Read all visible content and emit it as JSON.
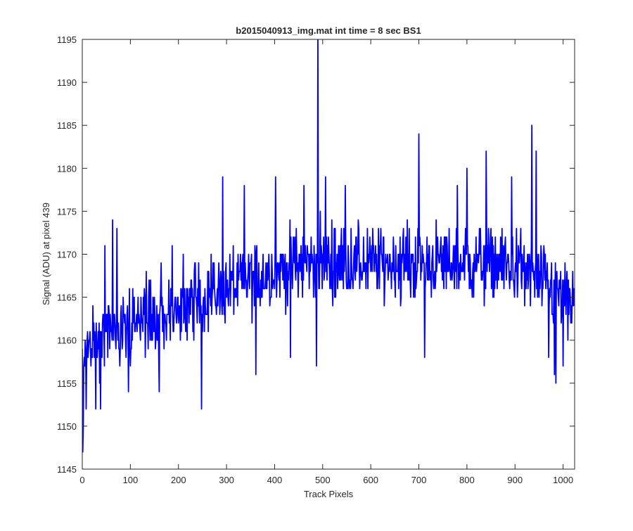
{
  "chart_data": {
    "type": "line",
    "title": "b2015040913_img.mat int time = 8 sec   BS1",
    "xlabel": "Track Pixels",
    "ylabel": "Signal (ADU) at pixel 439",
    "xlim": [
      0,
      1024
    ],
    "ylim": [
      1145,
      1195
    ],
    "xticks": [
      0,
      100,
      200,
      300,
      400,
      500,
      600,
      700,
      800,
      900,
      1000
    ],
    "yticks": [
      1145,
      1150,
      1155,
      1160,
      1165,
      1170,
      1175,
      1180,
      1185,
      1190,
      1195
    ],
    "grid": false,
    "series_color": "#0000ff",
    "n_points": 1024,
    "baseline": [
      [
        0,
        1158
      ],
      [
        50,
        1161
      ],
      [
        100,
        1162
      ],
      [
        150,
        1163
      ],
      [
        200,
        1164
      ],
      [
        250,
        1165
      ],
      [
        300,
        1166
      ],
      [
        350,
        1167
      ],
      [
        400,
        1168
      ],
      [
        450,
        1169
      ],
      [
        500,
        1169
      ],
      [
        550,
        1169
      ],
      [
        600,
        1169
      ],
      [
        650,
        1169
      ],
      [
        700,
        1169
      ],
      [
        750,
        1169
      ],
      [
        800,
        1169
      ],
      [
        850,
        1169
      ],
      [
        900,
        1168.5
      ],
      [
        950,
        1167
      ],
      [
        1000,
        1165
      ],
      [
        1023,
        1164
      ]
    ],
    "noise_amplitude": 3.5,
    "notable_points": [
      {
        "x": 1,
        "y": 1147
      },
      {
        "x": 2,
        "y": 1150
      },
      {
        "x": 5,
        "y": 1157
      },
      {
        "x": 8,
        "y": 1152
      },
      {
        "x": 28,
        "y": 1152
      },
      {
        "x": 38,
        "y": 1152
      },
      {
        "x": 47,
        "y": 1171
      },
      {
        "x": 63,
        "y": 1174
      },
      {
        "x": 72,
        "y": 1173
      },
      {
        "x": 96,
        "y": 1154
      },
      {
        "x": 160,
        "y": 1154
      },
      {
        "x": 187,
        "y": 1171
      },
      {
        "x": 210,
        "y": 1170
      },
      {
        "x": 248,
        "y": 1152
      },
      {
        "x": 292,
        "y": 1179
      },
      {
        "x": 337,
        "y": 1178
      },
      {
        "x": 361,
        "y": 1156
      },
      {
        "x": 402,
        "y": 1179
      },
      {
        "x": 433,
        "y": 1158
      },
      {
        "x": 461,
        "y": 1178
      },
      {
        "x": 487,
        "y": 1157
      },
      {
        "x": 490,
        "y": 1196
      },
      {
        "x": 506,
        "y": 1179
      },
      {
        "x": 547,
        "y": 1178
      },
      {
        "x": 700,
        "y": 1184
      },
      {
        "x": 712,
        "y": 1158
      },
      {
        "x": 780,
        "y": 1178
      },
      {
        "x": 800,
        "y": 1180
      },
      {
        "x": 840,
        "y": 1182
      },
      {
        "x": 893,
        "y": 1179
      },
      {
        "x": 935,
        "y": 1185
      },
      {
        "x": 944,
        "y": 1182
      },
      {
        "x": 970,
        "y": 1158
      },
      {
        "x": 982,
        "y": 1156
      },
      {
        "x": 985,
        "y": 1155
      },
      {
        "x": 1000,
        "y": 1157
      },
      {
        "x": 1010,
        "y": 1160
      },
      {
        "x": 1020,
        "y": 1168
      }
    ]
  }
}
